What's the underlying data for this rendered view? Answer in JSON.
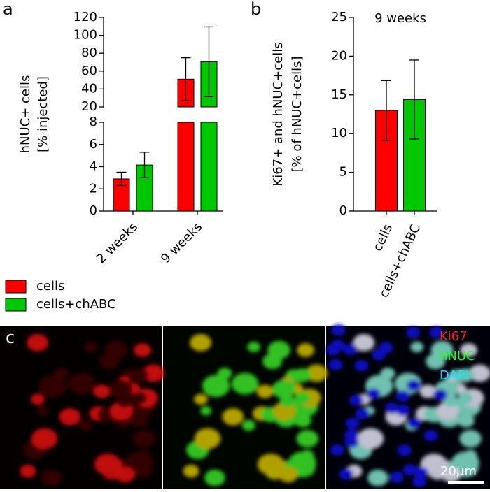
{
  "figure": {
    "panel_labels": [
      "a",
      "b",
      "c"
    ],
    "image_labels": [
      "Ki67",
      "hNUC",
      "DAPI"
    ],
    "scale_bar": "20µm"
  },
  "chart_data": [
    {
      "type": "bar",
      "ylabel": [
        "hNUC+ cells",
        "[% injected]"
      ],
      "categories": [
        "2 weeks",
        "9 weeks"
      ],
      "series": [
        {
          "name": "cells",
          "color": "#ff0000",
          "values": [
            2.9,
            51
          ],
          "errors": [
            0.6,
            24
          ]
        },
        {
          "name": "cells+chABC",
          "color": "#00c800",
          "values": [
            4.15,
            70.5
          ],
          "errors": [
            1.15,
            39
          ]
        }
      ],
      "ylim": [
        0,
        120
      ],
      "ybreak": [
        8,
        20
      ],
      "yticks": [
        0,
        2,
        4,
        6,
        8,
        20,
        40,
        60,
        80,
        100,
        120
      ]
    },
    {
      "type": "bar",
      "title": "9 weeks",
      "ylabel": [
        "Ki67+ and hNUC+cells",
        "[% of hNUC+cells]"
      ],
      "categories": [
        "cells",
        "cells+chABC"
      ],
      "values": [
        13.0,
        14.4
      ],
      "errors": [
        3.85,
        5.1
      ],
      "colors": [
        "#ff0000",
        "#00c800"
      ],
      "ylim": [
        0,
        25
      ],
      "yticks": [
        0,
        5,
        10,
        15,
        20,
        25
      ]
    }
  ]
}
